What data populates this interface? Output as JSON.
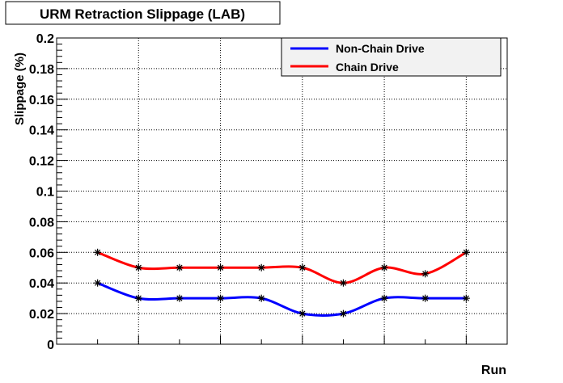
{
  "chart_data": {
    "type": "line",
    "title": "URM Retraction Slippage (LAB)",
    "xlabel": "Run",
    "ylabel": "Slippage (%)",
    "ylim": [
      0,
      0.2
    ],
    "yticks": [
      "0",
      "0.02",
      "0.04",
      "0.06",
      "0.08",
      "0.1",
      "0.12",
      "0.14",
      "0.16",
      "0.18",
      "0.2"
    ],
    "x": [
      1,
      2,
      3,
      4,
      5,
      6,
      7,
      8,
      9,
      10
    ],
    "xlim": [
      0.0,
      11.0
    ],
    "grid": true,
    "legend_position": "top-right",
    "series": [
      {
        "name": "Non-Chain Drive",
        "color": "#0000ff",
        "values": [
          0.04,
          0.03,
          0.03,
          0.03,
          0.03,
          0.02,
          0.02,
          0.03,
          0.03,
          0.03
        ]
      },
      {
        "name": "Chain Drive",
        "color": "#ff0000",
        "values": [
          0.06,
          0.05,
          0.05,
          0.05,
          0.05,
          0.05,
          0.04,
          0.05,
          0.046,
          0.06
        ]
      }
    ],
    "marker": "asterisk"
  }
}
